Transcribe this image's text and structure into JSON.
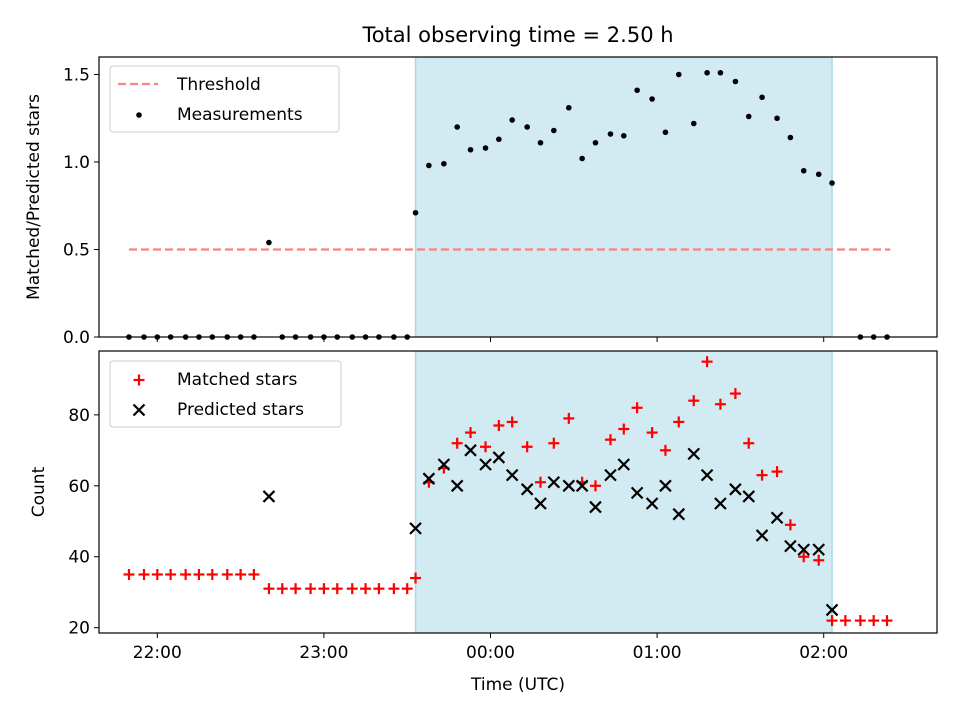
{
  "title": "Total observing time = 2.50 h",
  "colors": {
    "matched": "#ff0000",
    "predicted": "#000000",
    "measurement": "#000000",
    "threshold": "#ff7f7f",
    "observing_window": "#add8e6"
  },
  "chart_data": [
    {
      "type": "scatter",
      "panel": "top",
      "ylabel": "Matched/Predicted stars",
      "xlabel": "",
      "xlim": [
        21.65,
        26.68
      ],
      "ylim": [
        0.0,
        1.6
      ],
      "yticks": [
        0.0,
        0.5,
        1.0,
        1.5
      ],
      "ytick_labels": [
        "0.0",
        "0.5",
        "1.0",
        "1.5"
      ],
      "xticks": [
        22,
        23,
        24,
        25,
        26
      ],
      "xtick_labels": [
        "",
        "",
        "",
        "",
        ""
      ],
      "grid": false,
      "legend": {
        "placement": "top-left",
        "entries": [
          "Threshold",
          "Measurements"
        ]
      },
      "observing_window": {
        "start": 23.55,
        "end": 26.05
      },
      "threshold": {
        "name": "Threshold",
        "value": 0.5,
        "x_range": [
          21.83,
          26.4
        ]
      },
      "series": [
        {
          "name": "Measurements",
          "marker": "dot",
          "x": [
            21.83,
            21.92,
            22.0,
            22.08,
            22.17,
            22.25,
            22.33,
            22.42,
            22.5,
            22.58,
            22.67,
            22.75,
            22.83,
            22.92,
            23.0,
            23.08,
            23.17,
            23.25,
            23.33,
            23.42,
            23.5,
            23.55,
            23.63,
            23.72,
            23.8,
            23.88,
            23.97,
            24.05,
            24.13,
            24.22,
            24.3,
            24.38,
            24.47,
            24.55,
            24.63,
            24.72,
            24.8,
            24.88,
            24.97,
            25.05,
            25.13,
            25.22,
            25.3,
            25.38,
            25.47,
            25.55,
            25.63,
            25.72,
            25.8,
            25.88,
            25.97,
            26.05,
            26.22,
            26.3,
            26.38
          ],
          "y": [
            0.0,
            0.0,
            0.0,
            0.0,
            0.0,
            0.0,
            0.0,
            0.0,
            0.0,
            0.0,
            0.54,
            0.0,
            0.0,
            0.0,
            0.0,
            0.0,
            0.0,
            0.0,
            0.0,
            0.0,
            0.0,
            0.71,
            0.98,
            0.99,
            1.2,
            1.07,
            1.08,
            1.13,
            1.24,
            1.2,
            1.11,
            1.18,
            1.31,
            1.02,
            1.11,
            1.16,
            1.15,
            1.41,
            1.36,
            1.17,
            1.5,
            1.22,
            1.51,
            1.51,
            1.46,
            1.26,
            1.37,
            1.25,
            1.14,
            0.95,
            0.93,
            0.88,
            0.0,
            0.0,
            0.0
          ]
        }
      ]
    },
    {
      "type": "scatter",
      "panel": "bottom",
      "ylabel": "Count",
      "xlabel": "Time (UTC)",
      "xlim": [
        21.65,
        26.68
      ],
      "ylim": [
        18.5,
        98.0
      ],
      "yticks": [
        20,
        40,
        60,
        80
      ],
      "ytick_labels": [
        "20",
        "40",
        "60",
        "80"
      ],
      "xticks": [
        22,
        23,
        24,
        25,
        26
      ],
      "xtick_labels": [
        "22:00",
        "23:00",
        "00:00",
        "01:00",
        "02:00"
      ],
      "grid": false,
      "legend": {
        "placement": "top-left",
        "entries": [
          "Matched stars",
          "Predicted stars"
        ]
      },
      "observing_window": {
        "start": 23.55,
        "end": 26.05
      },
      "series": [
        {
          "name": "Matched stars",
          "marker": "plus",
          "x": [
            21.83,
            21.92,
            22.0,
            22.08,
            22.17,
            22.25,
            22.33,
            22.42,
            22.5,
            22.58,
            22.67,
            22.75,
            22.83,
            22.92,
            23.0,
            23.08,
            23.17,
            23.25,
            23.33,
            23.42,
            23.5,
            23.55,
            23.63,
            23.72,
            23.8,
            23.88,
            23.97,
            24.05,
            24.13,
            24.22,
            24.3,
            24.38,
            24.47,
            24.55,
            24.63,
            24.72,
            24.8,
            24.88,
            24.97,
            25.05,
            25.13,
            25.22,
            25.3,
            25.38,
            25.47,
            25.55,
            25.63,
            25.72,
            25.8,
            25.88,
            25.97,
            26.05,
            26.13,
            26.22,
            26.3,
            26.38
          ],
          "y": [
            35,
            35,
            35,
            35,
            35,
            35,
            35,
            35,
            35,
            35,
            31,
            31,
            31,
            31,
            31,
            31,
            31,
            31,
            31,
            31,
            31,
            34,
            61,
            65,
            72,
            75,
            71,
            77,
            78,
            71,
            61,
            72,
            79,
            61,
            60,
            73,
            76,
            82,
            75,
            70,
            78,
            84,
            95,
            83,
            86,
            72,
            63,
            64,
            49,
            40,
            39,
            22,
            22,
            22,
            22,
            22
          ]
        },
        {
          "name": "Predicted stars",
          "marker": "x",
          "x": [
            22.67,
            23.55,
            23.63,
            23.72,
            23.8,
            23.88,
            23.97,
            24.05,
            24.13,
            24.22,
            24.3,
            24.38,
            24.47,
            24.55,
            24.63,
            24.72,
            24.8,
            24.88,
            24.97,
            25.05,
            25.13,
            25.22,
            25.3,
            25.38,
            25.47,
            25.55,
            25.63,
            25.72,
            25.8,
            25.88,
            25.97,
            26.05
          ],
          "y": [
            57,
            48,
            62,
            66,
            60,
            70,
            66,
            68,
            63,
            59,
            55,
            61,
            60,
            60,
            54,
            63,
            66,
            58,
            55,
            60,
            52,
            69,
            63,
            55,
            59,
            57,
            46,
            51,
            43,
            42,
            42,
            25
          ]
        }
      ]
    }
  ]
}
